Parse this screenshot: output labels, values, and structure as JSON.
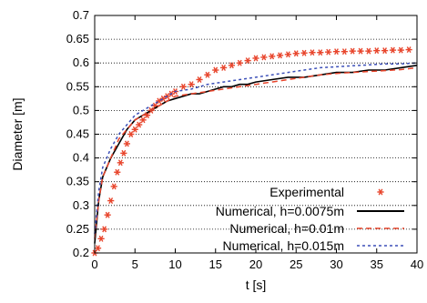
{
  "chart_data": {
    "type": "line",
    "title": "",
    "xlabel": "t [s]",
    "ylabel": "Diameter [m]",
    "xlim": [
      0,
      40
    ],
    "ylim": [
      0.2,
      0.7
    ],
    "x_ticks": [
      0,
      5,
      10,
      15,
      20,
      25,
      30,
      35,
      40
    ],
    "y_ticks": [
      0.2,
      0.25,
      0.3,
      0.35,
      0.4,
      0.45,
      0.5,
      0.55,
      0.6,
      0.65,
      0.7
    ],
    "x_tick_labels": [
      "0",
      "5",
      "10",
      "15",
      "20",
      "25",
      "30",
      "35",
      "40"
    ],
    "y_tick_labels": [
      "0.2",
      "0.25",
      "0.3",
      "0.35",
      "0.4",
      "0.45",
      "0.5",
      "0.55",
      "0.6",
      "0.65",
      "0.7"
    ],
    "grid": "horizontal-dotted",
    "legend_position": "bottom-right",
    "series": [
      {
        "name": "Experimental",
        "style": "markers",
        "color": "#e8452c",
        "points": [
          [
            0.0,
            0.2
          ],
          [
            0.4,
            0.21
          ],
          [
            0.8,
            0.23
          ],
          [
            1.2,
            0.25
          ],
          [
            1.6,
            0.28
          ],
          [
            2.0,
            0.31
          ],
          [
            2.4,
            0.34
          ],
          [
            2.8,
            0.37
          ],
          [
            3.2,
            0.39
          ],
          [
            3.6,
            0.41
          ],
          [
            4.0,
            0.43
          ],
          [
            4.5,
            0.45
          ],
          [
            5.0,
            0.46
          ],
          [
            5.5,
            0.47
          ],
          [
            6.0,
            0.48
          ],
          [
            6.5,
            0.49
          ],
          [
            7.0,
            0.5
          ],
          [
            7.5,
            0.51
          ],
          [
            8.0,
            0.52
          ],
          [
            8.5,
            0.525
          ],
          [
            9.0,
            0.53
          ],
          [
            9.5,
            0.535
          ],
          [
            10.0,
            0.54
          ],
          [
            11.0,
            0.55
          ],
          [
            12.0,
            0.555
          ],
          [
            13.0,
            0.565
          ],
          [
            14.0,
            0.575
          ],
          [
            15.0,
            0.585
          ],
          [
            16.0,
            0.59
          ],
          [
            17.0,
            0.595
          ],
          [
            18.0,
            0.6
          ],
          [
            19.0,
            0.605
          ],
          [
            20.0,
            0.61
          ],
          [
            21.0,
            0.612
          ],
          [
            22.0,
            0.614
          ],
          [
            23.0,
            0.616
          ],
          [
            24.0,
            0.618
          ],
          [
            25.0,
            0.62
          ],
          [
            26.0,
            0.621
          ],
          [
            27.0,
            0.622
          ],
          [
            28.0,
            0.622
          ],
          [
            29.0,
            0.623
          ],
          [
            30.0,
            0.624
          ],
          [
            31.0,
            0.624
          ],
          [
            32.0,
            0.625
          ],
          [
            33.0,
            0.625
          ],
          [
            34.0,
            0.625
          ],
          [
            35.0,
            0.626
          ],
          [
            36.0,
            0.626
          ],
          [
            37.0,
            0.627
          ],
          [
            38.0,
            0.627
          ],
          [
            39.0,
            0.628
          ]
        ]
      },
      {
        "name": "Numerical, h=0.0075m",
        "style": "solid",
        "color": "#000000",
        "points": [
          [
            0,
            0.22
          ],
          [
            0.5,
            0.31
          ],
          [
            1,
            0.36
          ],
          [
            2,
            0.4
          ],
          [
            3,
            0.43
          ],
          [
            4,
            0.46
          ],
          [
            5,
            0.48
          ],
          [
            6,
            0.49
          ],
          [
            7,
            0.5
          ],
          [
            8,
            0.51
          ],
          [
            9,
            0.52
          ],
          [
            10,
            0.525
          ],
          [
            11,
            0.53
          ],
          [
            12,
            0.535
          ],
          [
            13,
            0.535
          ],
          [
            14,
            0.54
          ],
          [
            15,
            0.545
          ],
          [
            16,
            0.55
          ],
          [
            17,
            0.55
          ],
          [
            18,
            0.555
          ],
          [
            19,
            0.555
          ],
          [
            20,
            0.56
          ],
          [
            22,
            0.565
          ],
          [
            24,
            0.57
          ],
          [
            26,
            0.57
          ],
          [
            28,
            0.575
          ],
          [
            30,
            0.58
          ],
          [
            32,
            0.58
          ],
          [
            34,
            0.585
          ],
          [
            36,
            0.585
          ],
          [
            38,
            0.59
          ],
          [
            40,
            0.595
          ]
        ]
      },
      {
        "name": "Numerical, h=0.01m",
        "style": "dashed",
        "color": "#e8452c",
        "points": [
          [
            0,
            0.23
          ],
          [
            0.5,
            0.31
          ],
          [
            1,
            0.36
          ],
          [
            2,
            0.4
          ],
          [
            3,
            0.44
          ],
          [
            4,
            0.46
          ],
          [
            5,
            0.48
          ],
          [
            6,
            0.49
          ],
          [
            7,
            0.5
          ],
          [
            8,
            0.51
          ],
          [
            9,
            0.52
          ],
          [
            10,
            0.53
          ],
          [
            12,
            0.535
          ],
          [
            14,
            0.54
          ],
          [
            16,
            0.545
          ],
          [
            18,
            0.55
          ],
          [
            20,
            0.555
          ],
          [
            22,
            0.56
          ],
          [
            24,
            0.565
          ],
          [
            26,
            0.57
          ],
          [
            28,
            0.575
          ],
          [
            30,
            0.578
          ],
          [
            32,
            0.58
          ],
          [
            34,
            0.582
          ],
          [
            36,
            0.584
          ],
          [
            38,
            0.586
          ],
          [
            40,
            0.59
          ]
        ]
      },
      {
        "name": "Numerical, h=0.015m",
        "style": "dotted",
        "color": "#3b4fb8",
        "points": [
          [
            0,
            0.24
          ],
          [
            0.5,
            0.33
          ],
          [
            1,
            0.38
          ],
          [
            2,
            0.42
          ],
          [
            3,
            0.45
          ],
          [
            4,
            0.47
          ],
          [
            5,
            0.49
          ],
          [
            6,
            0.5
          ],
          [
            7,
            0.51
          ],
          [
            8,
            0.52
          ],
          [
            9,
            0.53
          ],
          [
            10,
            0.54
          ],
          [
            12,
            0.545
          ],
          [
            14,
            0.555
          ],
          [
            16,
            0.56
          ],
          [
            18,
            0.565
          ],
          [
            20,
            0.57
          ],
          [
            22,
            0.575
          ],
          [
            24,
            0.58
          ],
          [
            26,
            0.585
          ],
          [
            28,
            0.59
          ],
          [
            30,
            0.592
          ],
          [
            32,
            0.594
          ],
          [
            34,
            0.596
          ],
          [
            36,
            0.598
          ],
          [
            38,
            0.598
          ],
          [
            40,
            0.6
          ]
        ]
      }
    ]
  }
}
